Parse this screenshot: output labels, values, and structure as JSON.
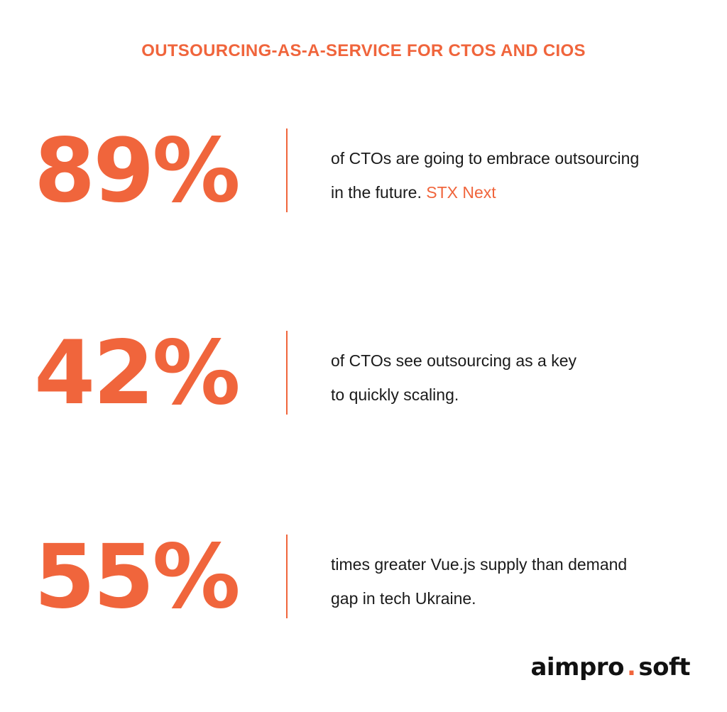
{
  "title": "OUTSOURCING-AS-A-SERVICE FOR CTOS AND CIOS",
  "stats": [
    {
      "value": "89%",
      "line1": "of CTOs are going to embrace outsourcing",
      "line2": "in the future.",
      "source": "STX Next"
    },
    {
      "value": "42%",
      "line1": "of CTOs see outsourcing as a key",
      "line2": "to quickly scaling."
    },
    {
      "value": "55%",
      "line1": "times greater Vue.js supply than demand",
      "line2": "gap in tech Ukraine."
    }
  ],
  "logo": {
    "part1": "aimpro",
    "dot": ".",
    "part2": "soft",
    "accent_color": "#f0653c"
  },
  "colors": {
    "accent": "#f0653c",
    "text": "#1a1a1a",
    "background": "#ffffff"
  }
}
